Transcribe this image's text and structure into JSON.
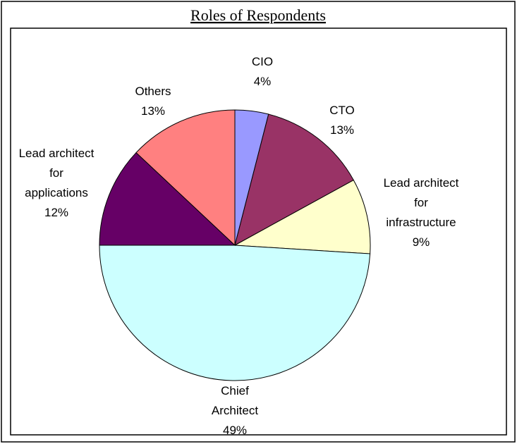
{
  "chart_data": {
    "type": "pie",
    "title": "Roles of Respondents",
    "categories": [
      "CIO",
      "CTO",
      "Lead architect for infrastructure",
      "Chief Architect",
      "Lead architect for applications",
      "Others"
    ],
    "values": [
      4,
      13,
      9,
      49,
      12,
      13
    ],
    "value_labels": [
      "4%",
      "13%",
      "9%",
      "49%",
      "12%",
      "13%"
    ],
    "colors": [
      "#9999ff",
      "#993366",
      "#ffffcc",
      "#ccffff",
      "#660066",
      "#ff8080"
    ]
  }
}
